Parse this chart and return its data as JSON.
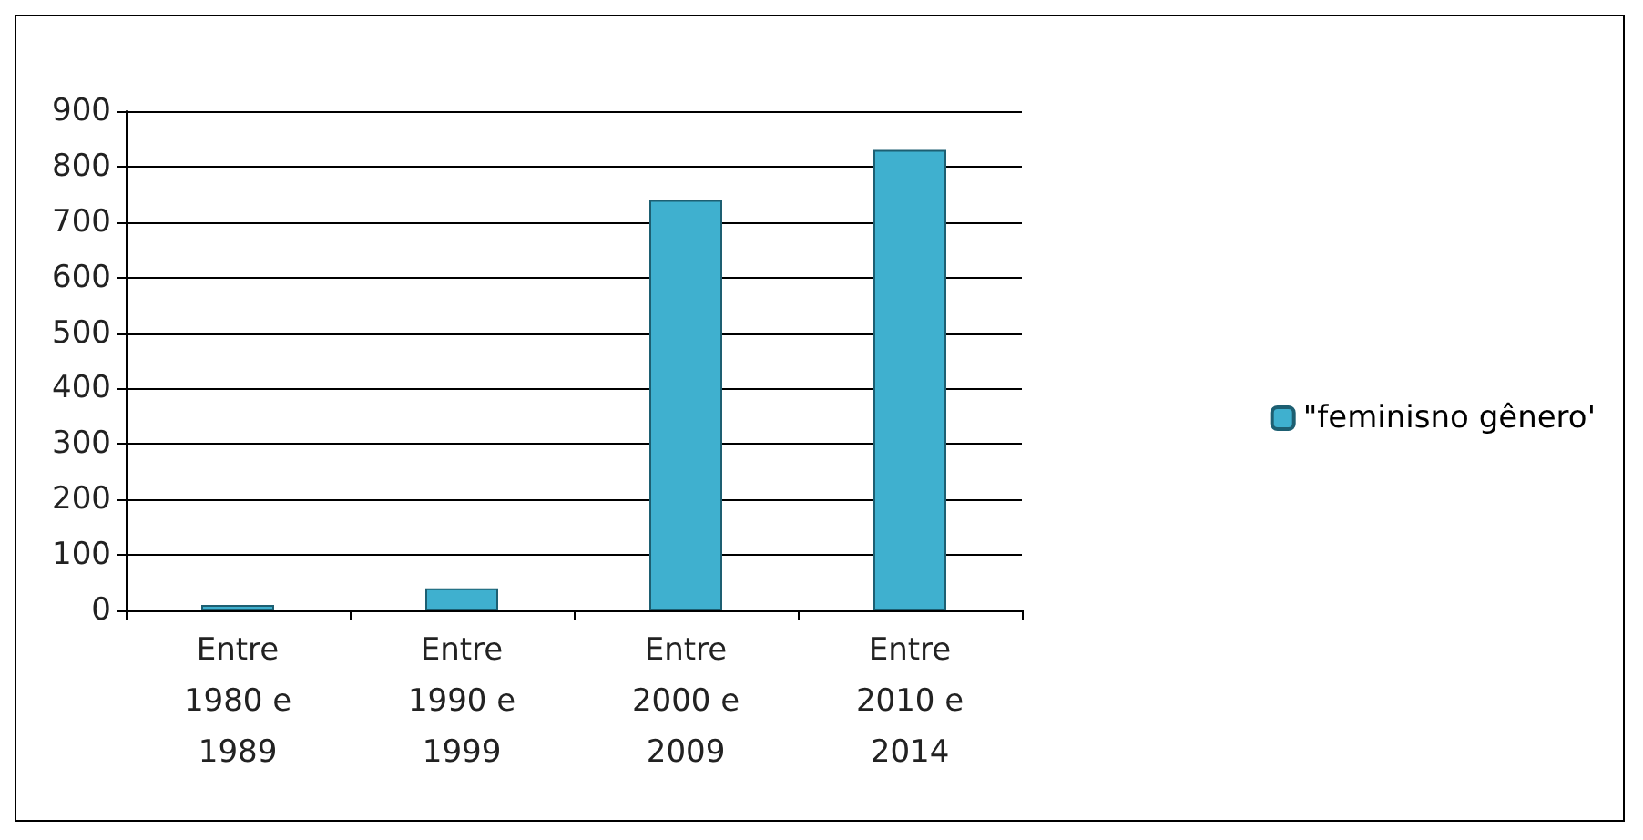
{
  "chart_data": {
    "type": "bar",
    "categories": [
      "Entre 1980 e 1989",
      "Entre 1990 e 1999",
      "Entre 2000 e 2009",
      "Entre 2010 e 2014"
    ],
    "series": [
      {
        "name": "\"feminisno gênero'",
        "color": "#3fb0cf",
        "values": [
          10,
          40,
          740,
          830
        ]
      }
    ],
    "ylim": [
      0,
      900
    ],
    "yticks": [
      0,
      100,
      200,
      300,
      400,
      500,
      600,
      700,
      800,
      900
    ],
    "grid": "y",
    "legend": "right"
  }
}
